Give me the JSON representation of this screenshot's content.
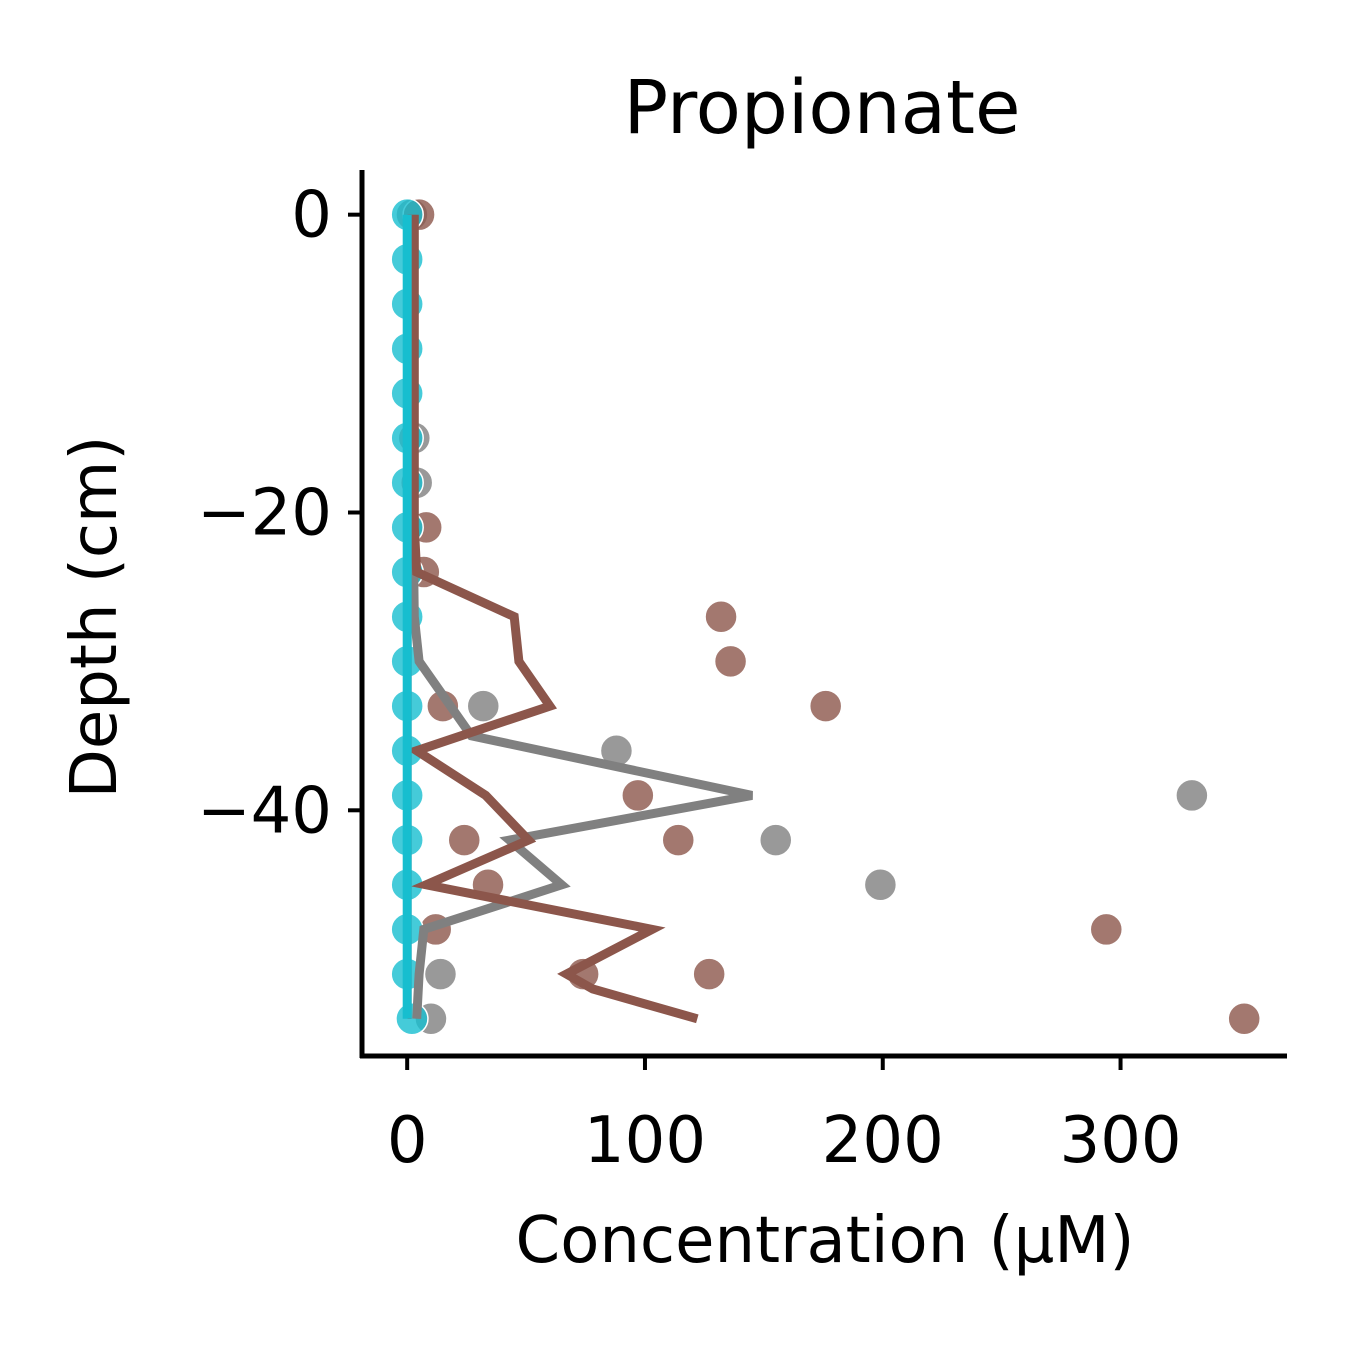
{
  "chart_data": {
    "type": "scatter",
    "title": "Propionate",
    "xlabel": "Concentration (μM)",
    "ylabel": "Depth (cm)",
    "xlim": [
      -19,
      370
    ],
    "ylim": [
      -56.5,
      3
    ],
    "xticks": [
      0,
      100,
      200,
      300
    ],
    "yticks": [
      0,
      -20,
      -40
    ],
    "grid": false,
    "legend": "none",
    "series": [
      {
        "color": "#808080",
        "points": [
          {
            "x": 2,
            "y": 0
          },
          {
            "x": 3,
            "y": -15
          },
          {
            "x": 4,
            "y": -18
          },
          {
            "x": 32,
            "y": -33
          },
          {
            "x": 88,
            "y": -36
          },
          {
            "x": 330,
            "y": -39
          },
          {
            "x": 155,
            "y": -42
          },
          {
            "x": 199,
            "y": -45
          },
          {
            "x": 14,
            "y": -51
          },
          {
            "x": 10,
            "y": -54
          }
        ],
        "line": [
          {
            "x": 2,
            "y": 0
          },
          {
            "x": 2,
            "y": -15
          },
          {
            "x": 3,
            "y": -27
          },
          {
            "x": 5,
            "y": -30
          },
          {
            "x": 27,
            "y": -35
          },
          {
            "x": 145,
            "y": -39
          },
          {
            "x": 43,
            "y": -42
          },
          {
            "x": 65,
            "y": -45
          },
          {
            "x": 7,
            "y": -48
          },
          {
            "x": 5,
            "y": -51
          },
          {
            "x": 4,
            "y": -54
          }
        ]
      },
      {
        "color": "#8c564b",
        "points": [
          {
            "x": 5,
            "y": 0
          },
          {
            "x": 8,
            "y": -21
          },
          {
            "x": 7,
            "y": -24
          },
          {
            "x": 132,
            "y": -27
          },
          {
            "x": 136,
            "y": -30
          },
          {
            "x": 176,
            "y": -33
          },
          {
            "x": 15,
            "y": -33
          },
          {
            "x": 97,
            "y": -39
          },
          {
            "x": 114,
            "y": -42
          },
          {
            "x": 24,
            "y": -42
          },
          {
            "x": 34,
            "y": -45
          },
          {
            "x": 294,
            "y": -48
          },
          {
            "x": 12,
            "y": -48
          },
          {
            "x": 127,
            "y": -51
          },
          {
            "x": 74,
            "y": -51
          },
          {
            "x": 352,
            "y": -54
          }
        ],
        "line": [
          {
            "x": 3,
            "y": 0
          },
          {
            "x": 3,
            "y": -21
          },
          {
            "x": 4,
            "y": -24
          },
          {
            "x": 45,
            "y": -27
          },
          {
            "x": 47,
            "y": -30
          },
          {
            "x": 60,
            "y": -33
          },
          {
            "x": 4,
            "y": -36
          },
          {
            "x": 33,
            "y": -39
          },
          {
            "x": 51,
            "y": -42
          },
          {
            "x": 8,
            "y": -45
          },
          {
            "x": 103,
            "y": -48
          },
          {
            "x": 67,
            "y": -51
          },
          {
            "x": 78,
            "y": -52
          },
          {
            "x": 122,
            "y": -54
          }
        ]
      },
      {
        "color": "#d62728",
        "points": [],
        "line": [
          {
            "x": 1,
            "y": 0
          },
          {
            "x": 1,
            "y": -27
          },
          {
            "x": 1,
            "y": -54
          }
        ]
      },
      {
        "color": "#17becf",
        "points": [
          {
            "x": 0,
            "y": 0
          },
          {
            "x": 0,
            "y": -3
          },
          {
            "x": 0,
            "y": -6
          },
          {
            "x": 0,
            "y": -9
          },
          {
            "x": 0,
            "y": -12
          },
          {
            "x": 0,
            "y": -15
          },
          {
            "x": 0,
            "y": -18
          },
          {
            "x": 0,
            "y": -21
          },
          {
            "x": 0,
            "y": -24
          },
          {
            "x": 0,
            "y": -27
          },
          {
            "x": 0,
            "y": -30
          },
          {
            "x": 0,
            "y": -33
          },
          {
            "x": 0,
            "y": -36
          },
          {
            "x": 0,
            "y": -39
          },
          {
            "x": 0,
            "y": -42
          },
          {
            "x": 0,
            "y": -45
          },
          {
            "x": 0,
            "y": -48
          },
          {
            "x": 0,
            "y": -51
          },
          {
            "x": 2,
            "y": -54
          }
        ],
        "line": [
          {
            "x": 0,
            "y": 0
          },
          {
            "x": 0,
            "y": -27
          },
          {
            "x": 0,
            "y": -54
          }
        ]
      }
    ]
  }
}
